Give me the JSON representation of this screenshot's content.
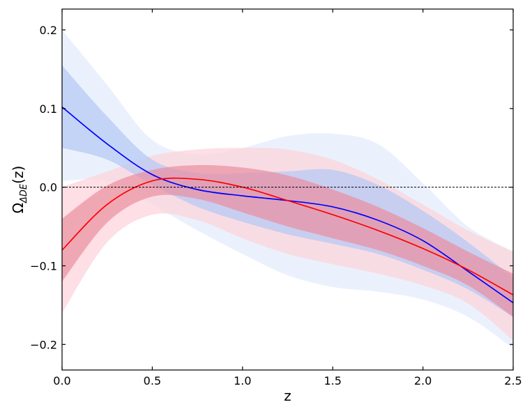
{
  "chart_data": {
    "type": "line",
    "xlabel": "z",
    "ylabel_main": "Ω",
    "ylabel_sub": "ΔDE",
    "ylabel_tail": "(z)",
    "xlim": [
      0,
      2.5
    ],
    "ylim": [
      -0.2325,
      0.2265
    ],
    "xticks": [
      0,
      0.5,
      1.0,
      1.5,
      2.0,
      2.5
    ],
    "xtick_labels": [
      "0.0",
      "0.5",
      "1.0",
      "1.5",
      "2.0",
      "2.5"
    ],
    "yticks": [
      -0.2,
      -0.1,
      0.0,
      0.1,
      0.2
    ],
    "ytick_labels": [
      "−0.2",
      "−0.1",
      "0.0",
      "0.1",
      "0.2"
    ],
    "reference_line": {
      "y": 0,
      "style": "dashed",
      "color": "#000000"
    },
    "x": [
      0,
      0.25,
      0.5,
      0.75,
      1.0,
      1.25,
      1.5,
      1.75,
      2.0,
      2.25,
      2.5
    ],
    "series": [
      {
        "color": "#0000ff",
        "band_inner_color": "#b3c8f5",
        "band_outer_color": "#e4ecfb",
        "mean": [
          0.102,
          0.055,
          0.016,
          -0.003,
          -0.011,
          -0.017,
          -0.025,
          -0.042,
          -0.068,
          -0.107,
          -0.147
        ],
        "inner_lower": [
          0.05,
          0.035,
          0.003,
          -0.025,
          -0.044,
          -0.06,
          -0.072,
          -0.085,
          -0.105,
          -0.13,
          -0.165
        ],
        "inner_upper": [
          0.155,
          0.09,
          0.035,
          0.018,
          0.018,
          0.02,
          0.022,
          0.003,
          -0.03,
          -0.07,
          -0.115
        ],
        "outer_lower": [
          0.008,
          0.008,
          -0.022,
          -0.055,
          -0.085,
          -0.112,
          -0.127,
          -0.133,
          -0.143,
          -0.165,
          -0.205
        ],
        "outer_upper": [
          0.2,
          0.13,
          0.06,
          0.042,
          0.05,
          0.065,
          0.068,
          0.055,
          0.005,
          -0.05,
          -0.082
        ]
      },
      {
        "color": "#ff0000",
        "band_inner_color": "#ea8e9f",
        "band_outer_color": "#fcd4dc",
        "mean": [
          -0.08,
          -0.022,
          0.008,
          0.01,
          0.0,
          -0.017,
          -0.035,
          -0.055,
          -0.078,
          -0.105,
          -0.137
        ],
        "inner_lower": [
          -0.12,
          -0.045,
          -0.012,
          -0.015,
          -0.032,
          -0.05,
          -0.065,
          -0.08,
          -0.1,
          -0.125,
          -0.165
        ],
        "inner_upper": [
          -0.04,
          0.002,
          0.022,
          0.028,
          0.025,
          0.015,
          -0.003,
          -0.025,
          -0.052,
          -0.082,
          -0.11
        ],
        "outer_lower": [
          -0.16,
          -0.07,
          -0.035,
          -0.042,
          -0.065,
          -0.085,
          -0.098,
          -0.11,
          -0.125,
          -0.148,
          -0.195
        ],
        "outer_upper": [
          -0.0,
          0.02,
          0.04,
          0.048,
          0.05,
          0.048,
          0.035,
          0.01,
          -0.022,
          -0.055,
          -0.082
        ]
      }
    ]
  }
}
